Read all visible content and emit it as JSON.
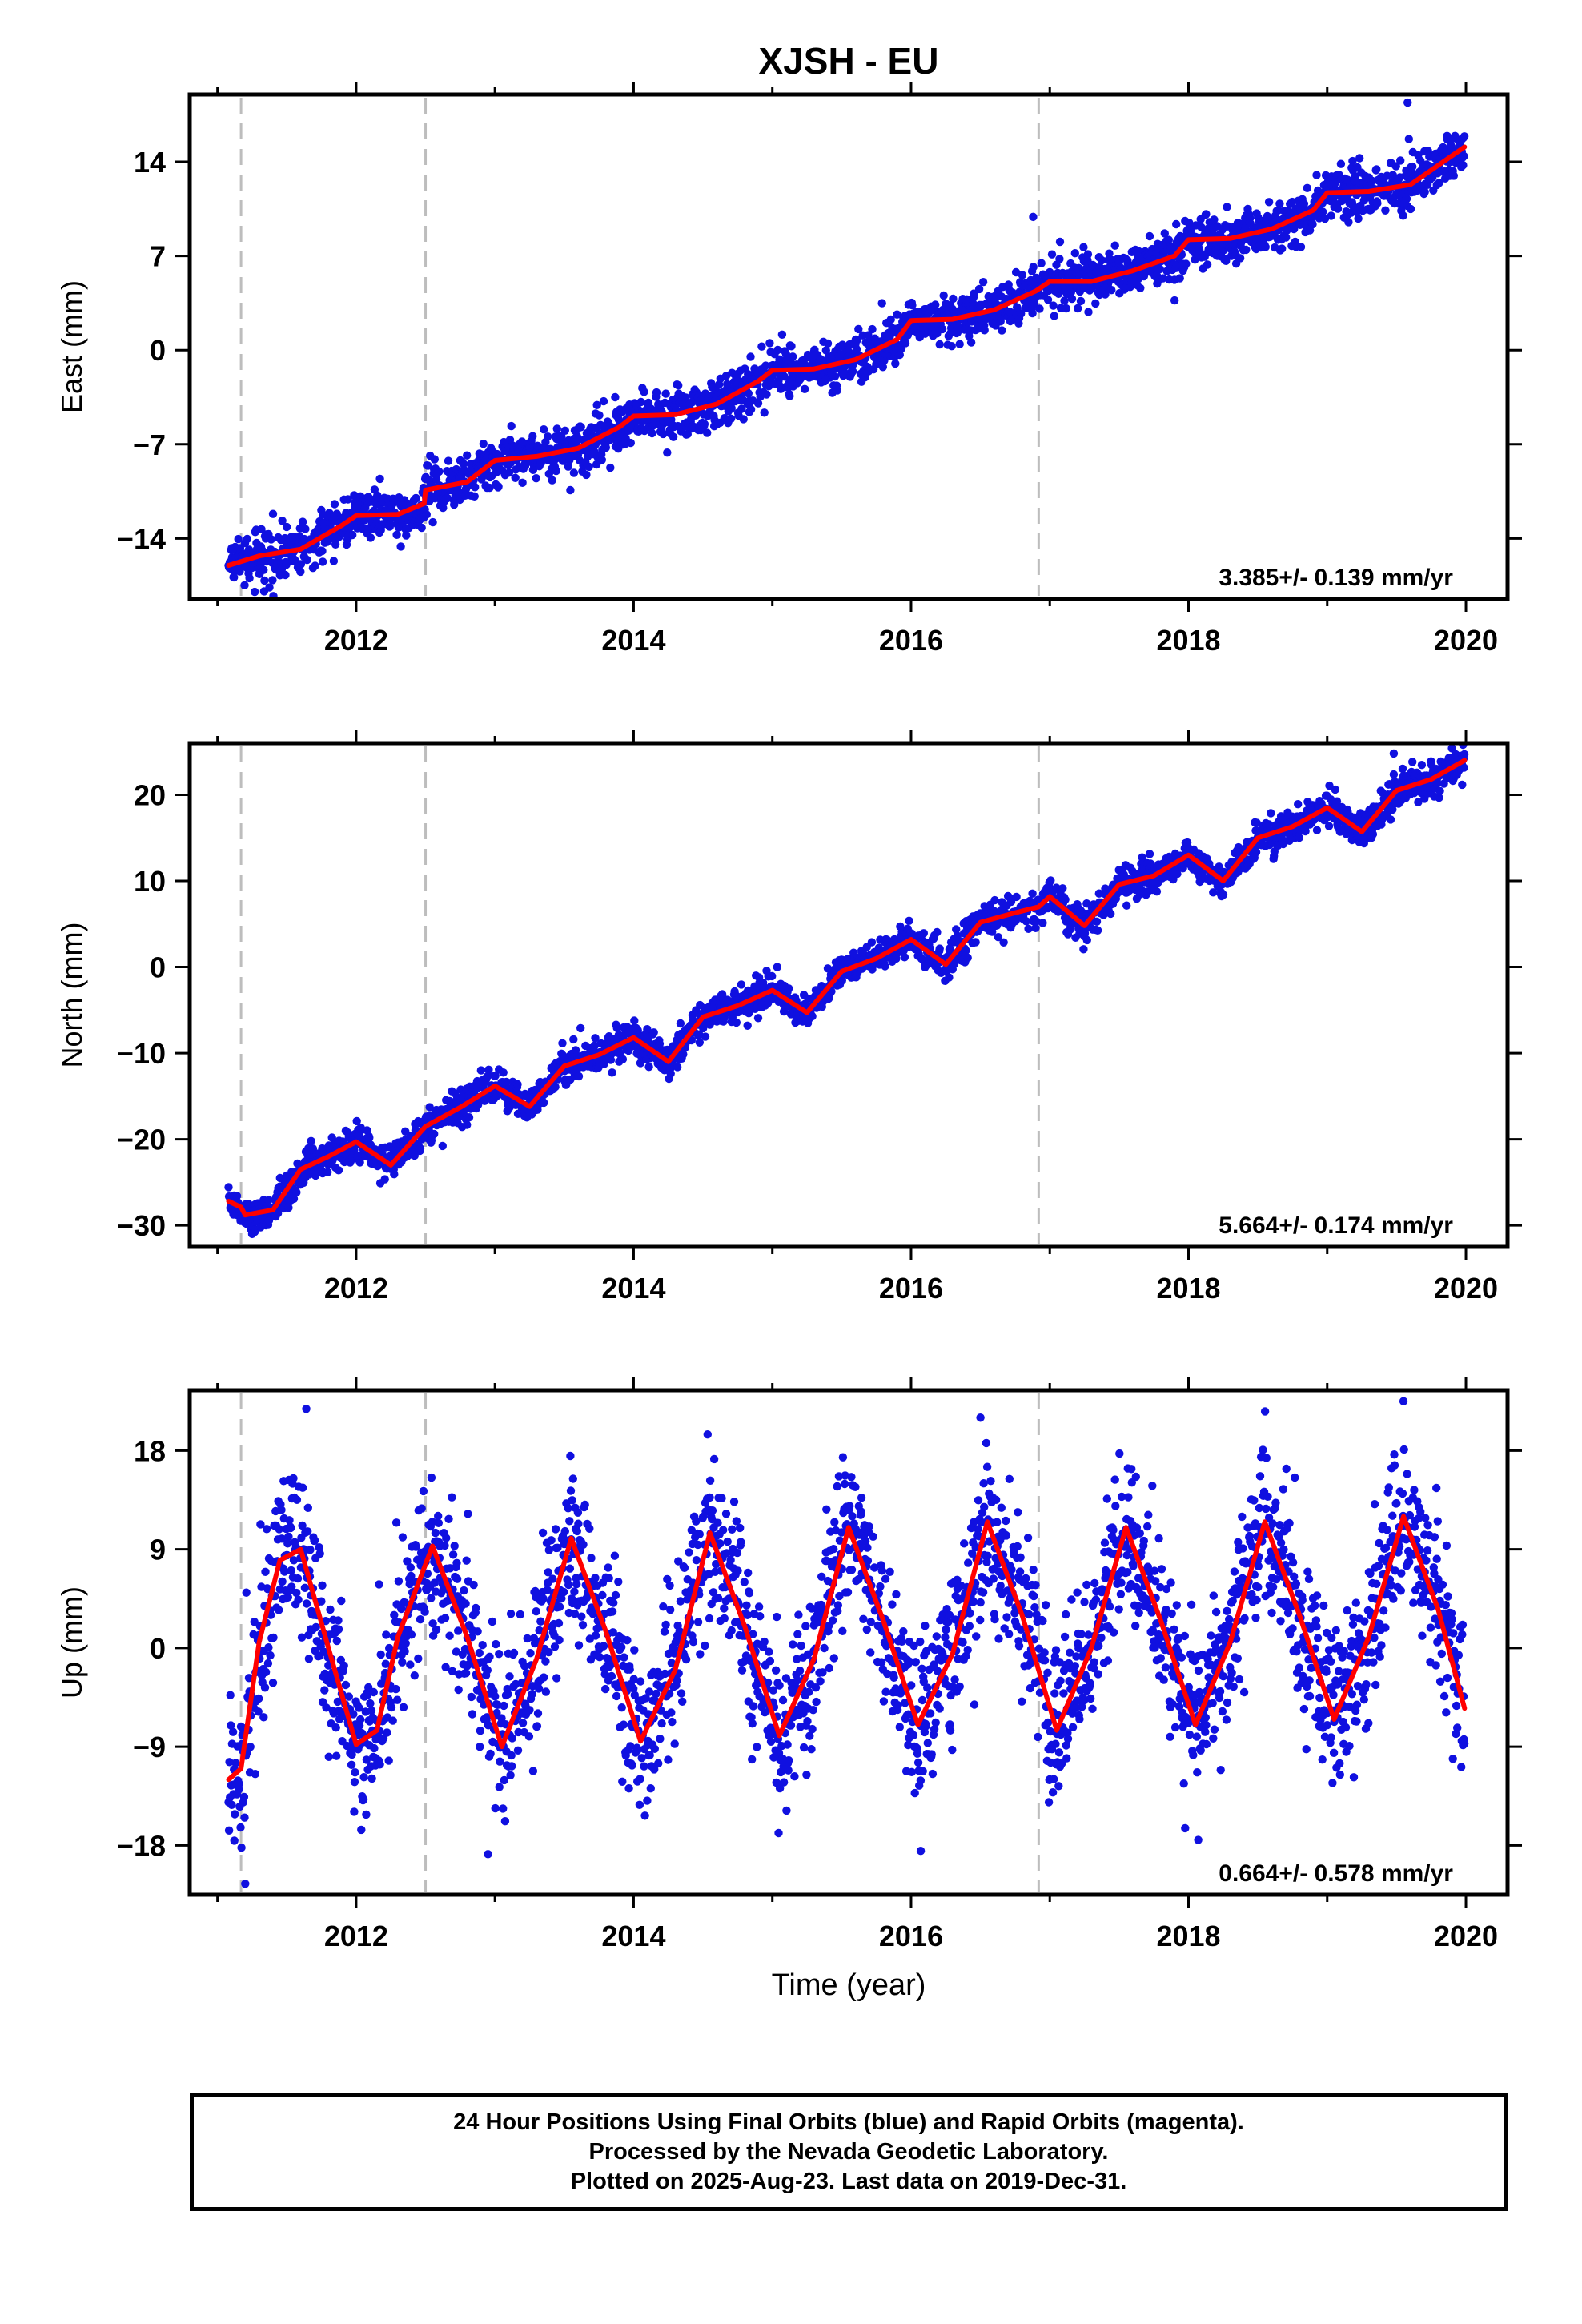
{
  "title": "XJSH - EU",
  "colors": {
    "points": "#1010e0",
    "fit": "#ff0000",
    "offset_lines": "#bdbdbd",
    "frame": "#000000"
  },
  "offsets": [
    2011.17,
    2012.5,
    2016.92
  ],
  "footer": {
    "line1": "24 Hour Positions Using Final Orbits (blue) and Rapid Orbits (magenta).",
    "line2": "Processed by the Nevada Geodetic Laboratory.",
    "line3": "Plotted on 2025-Aug-23. Last data on 2019-Dec-31."
  },
  "chart_data": [
    {
      "type": "scatter",
      "component": "East",
      "ylabel": "East (mm)",
      "xlabel": "",
      "xlim": [
        2010.8,
        2020.3
      ],
      "ylim": [
        -18.5,
        19
      ],
      "xticks": [
        2012,
        2014,
        2016,
        2018,
        2020
      ],
      "yticks": [
        -14,
        -7,
        0,
        7,
        14
      ],
      "ytick_labels": [
        "−14",
        "−7",
        "0",
        "7",
        "14"
      ],
      "rate_label": "3.385+/- 0.139 mm/yr",
      "trend": {
        "slope": 3.385,
        "start_x": 2011.08,
        "start_y": -16.2,
        "annual_amp": 0.45,
        "annual_phase": 2011.35,
        "noise": 0.9
      },
      "fit_series": {
        "x": [
          2011.08,
          2011.3,
          2011.6,
          2011.9,
          2012.0,
          2012.3,
          2012.49,
          2012.5,
          2012.8,
          2013.0,
          2013.3,
          2013.6,
          2013.9,
          2014.0,
          2014.3,
          2014.6,
          2014.9,
          2015.0,
          2015.3,
          2015.6,
          2015.9,
          2016.0,
          2016.3,
          2016.6,
          2016.9,
          2017.0,
          2017.3,
          2017.6,
          2017.9,
          2018.0,
          2018.3,
          2018.6,
          2018.9,
          2019.0,
          2019.3,
          2019.6,
          2019.99
        ],
        "y": [
          -16.0,
          -15.3,
          -14.8,
          -13.0,
          -12.3,
          -12.2,
          -11.4,
          -10.4,
          -9.8,
          -8.2,
          -7.9,
          -7.3,
          -5.7,
          -4.9,
          -4.8,
          -4.0,
          -2.3,
          -1.5,
          -1.4,
          -0.7,
          0.8,
          2.2,
          2.3,
          3.0,
          4.4,
          5.1,
          5.1,
          5.9,
          7.0,
          8.2,
          8.3,
          9.0,
          10.4,
          11.7,
          11.8,
          12.3,
          15.1
        ]
      },
      "outliers": [
        [
          2016.88,
          9.9
        ],
        [
          2019.58,
          18.4
        ],
        [
          2017.9,
          3.7
        ]
      ]
    },
    {
      "type": "scatter",
      "component": "North",
      "ylabel": "North (mm)",
      "xlabel": "",
      "xlim": [
        2010.8,
        2020.3
      ],
      "ylim": [
        -32.5,
        26
      ],
      "xticks": [
        2012,
        2014,
        2016,
        2018,
        2020
      ],
      "yticks": [
        -30,
        -20,
        -10,
        0,
        10,
        20
      ],
      "ytick_labels": [
        "−30",
        "−20",
        "−10",
        "0",
        "10",
        "20"
      ],
      "rate_label": "5.664+/- 0.174 mm/yr",
      "trend": {
        "slope": 5.664,
        "start_x": 2011.08,
        "start_y": -28.0,
        "annual_amp": 1.9,
        "annual_phase": 2011.1,
        "noise": 1.0
      },
      "fit_series": {
        "x": [
          2011.08,
          2011.17,
          2011.2,
          2011.4,
          2011.6,
          2011.8,
          2012.0,
          2012.25,
          2012.5,
          2012.75,
          2013.0,
          2013.25,
          2013.5,
          2013.75,
          2014.0,
          2014.25,
          2014.5,
          2014.75,
          2015.0,
          2015.25,
          2015.5,
          2015.75,
          2016.0,
          2016.25,
          2016.5,
          2016.75,
          2016.92,
          2017.0,
          2017.25,
          2017.5,
          2017.75,
          2018.0,
          2018.25,
          2018.5,
          2018.75,
          2019.0,
          2019.25,
          2019.5,
          2019.75,
          2019.99
        ],
        "y": [
          -27.2,
          -27.9,
          -28.8,
          -28.2,
          -23.5,
          -22.0,
          -20.3,
          -23.0,
          -18.5,
          -16.3,
          -13.8,
          -16.2,
          -11.5,
          -10.2,
          -8.2,
          -11.0,
          -5.8,
          -4.5,
          -2.7,
          -5.3,
          -0.5,
          1.0,
          3.2,
          0.3,
          5.2,
          6.3,
          7.0,
          8.2,
          4.8,
          9.6,
          10.6,
          13.0,
          10.0,
          15.0,
          16.3,
          18.5,
          15.7,
          20.5,
          21.8,
          24.0
        ]
      },
      "outliers": [
        [
          2011.25,
          -31.0
        ],
        [
          2012.9,
          -12.0
        ],
        [
          2019.48,
          24.8
        ]
      ]
    },
    {
      "type": "scatter",
      "component": "Up",
      "ylabel": "Up (mm)",
      "xlabel": "Time (year)",
      "xlim": [
        2010.8,
        2020.3
      ],
      "ylim": [
        -22.5,
        23.5
      ],
      "xticks": [
        2012,
        2014,
        2016,
        2018,
        2020
      ],
      "yticks": [
        -18,
        -9,
        0,
        9,
        18
      ],
      "ytick_labels": [
        "−18",
        "−9",
        "0",
        "9",
        "18"
      ],
      "rate_label": "0.664+/- 0.578 mm/yr",
      "trend": {
        "slope": 0.664,
        "start_x": 2011.08,
        "start_y": -0.5,
        "annual_amp": 9.5,
        "annual_phase": 2011.33,
        "noise": 3.6
      },
      "fit_series": {
        "x": [
          2011.08,
          2011.17,
          2011.3,
          2011.45,
          2011.6,
          2011.8,
          2012.0,
          2012.15,
          2012.3,
          2012.55,
          2012.8,
          2013.05,
          2013.3,
          2013.55,
          2013.8,
          2014.05,
          2014.3,
          2014.55,
          2014.8,
          2015.05,
          2015.3,
          2015.55,
          2015.8,
          2016.05,
          2016.3,
          2016.55,
          2016.8,
          2017.05,
          2017.3,
          2017.55,
          2017.8,
          2018.05,
          2018.3,
          2018.55,
          2018.8,
          2019.05,
          2019.3,
          2019.55,
          2019.8,
          2019.99
        ],
        "y": [
          -12.0,
          -11.0,
          0.5,
          8.0,
          9.0,
          0.0,
          -8.8,
          -7.5,
          1.0,
          9.3,
          1.0,
          -9.0,
          -1.0,
          10.0,
          1.5,
          -8.5,
          -2.0,
          10.5,
          2.0,
          -8.0,
          -1.0,
          11.0,
          2.5,
          -7.0,
          -0.5,
          11.5,
          3.0,
          -7.5,
          0.0,
          11.0,
          2.5,
          -7.0,
          0.5,
          11.5,
          3.0,
          -6.5,
          1.0,
          12.0,
          3.5,
          -5.5
        ]
      },
      "outliers": [
        [
          2011.64,
          21.8
        ],
        [
          2011.2,
          -21.5
        ],
        [
          2016.5,
          21.0
        ],
        [
          2019.55,
          22.5
        ],
        [
          2016.07,
          -18.5
        ],
        [
          2012.95,
          -18.8
        ],
        [
          2018.07,
          -17.5
        ]
      ]
    }
  ]
}
